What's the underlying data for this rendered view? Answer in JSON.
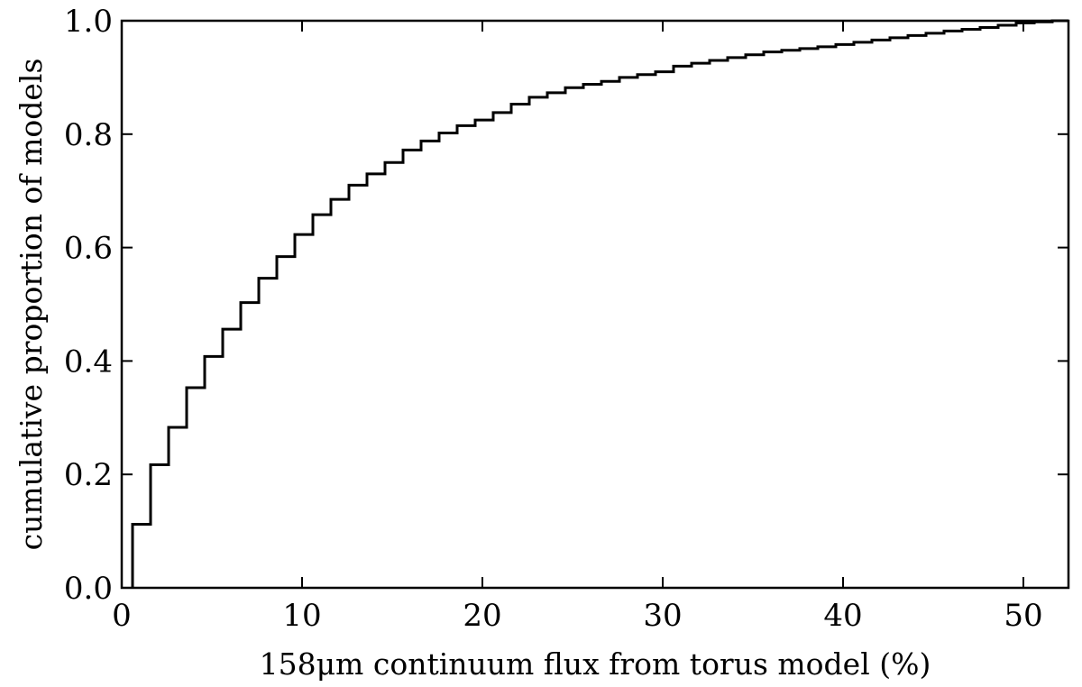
{
  "chart_data": {
    "type": "line",
    "step": "post",
    "xlabel": "158μm continuum flux from torus model (%)",
    "ylabel": "cumulative proportion of models",
    "xlim": [
      0,
      52.5
    ],
    "ylim": [
      0.0,
      1.0
    ],
    "grid": false,
    "legend": "none",
    "x_ticks": [
      0,
      10,
      20,
      30,
      40,
      50
    ],
    "x_tick_labels": [
      "0",
      "10",
      "20",
      "30",
      "40",
      "50"
    ],
    "y_ticks": [
      0.0,
      0.2,
      0.4,
      0.6,
      0.8,
      1.0
    ],
    "y_tick_labels": [
      "0.0",
      "0.2",
      "0.4",
      "0.6",
      "0.8",
      "1.0"
    ],
    "series": [
      {
        "color": "#000000",
        "x": [
          0.6,
          0.6,
          1.6,
          2.6,
          3.6,
          4.6,
          5.6,
          6.6,
          7.6,
          8.6,
          9.6,
          10.6,
          11.6,
          12.6,
          13.6,
          14.6,
          15.6,
          16.6,
          17.6,
          18.6,
          19.6,
          20.6,
          21.6,
          22.6,
          23.6,
          24.6,
          25.6,
          26.6,
          27.6,
          28.6,
          29.6,
          30.6,
          31.6,
          32.6,
          33.6,
          34.6,
          35.6,
          36.6,
          37.6,
          38.6,
          39.6,
          40.6,
          41.6,
          42.6,
          43.6,
          44.6,
          45.6,
          46.6,
          47.6,
          48.6,
          49.6,
          50.6,
          51.6,
          52.5
        ],
        "y": [
          0.0,
          0.112,
          0.217,
          0.283,
          0.353,
          0.408,
          0.456,
          0.503,
          0.546,
          0.584,
          0.623,
          0.658,
          0.685,
          0.71,
          0.73,
          0.75,
          0.772,
          0.788,
          0.802,
          0.815,
          0.825,
          0.838,
          0.853,
          0.865,
          0.873,
          0.882,
          0.888,
          0.893,
          0.9,
          0.905,
          0.91,
          0.92,
          0.925,
          0.93,
          0.935,
          0.94,
          0.945,
          0.948,
          0.951,
          0.954,
          0.958,
          0.962,
          0.966,
          0.97,
          0.974,
          0.978,
          0.982,
          0.985,
          0.988,
          0.992,
          0.996,
          0.998,
          1.0,
          1.0
        ]
      }
    ]
  }
}
